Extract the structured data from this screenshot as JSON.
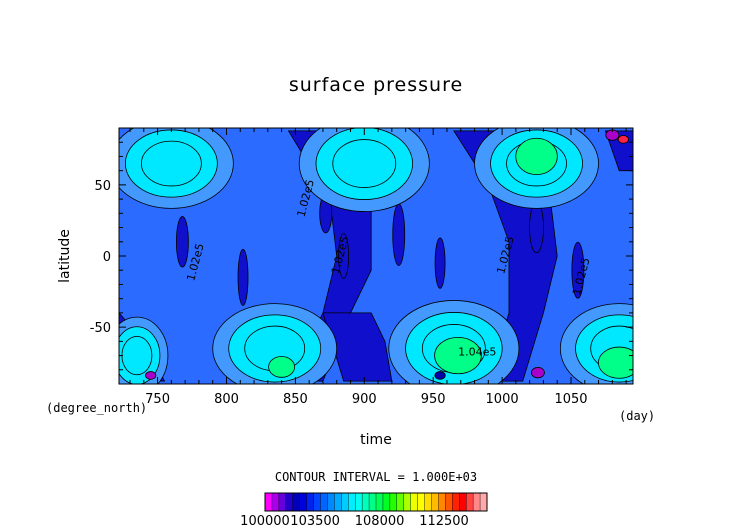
{
  "chart_data": {
    "type": "heatmap",
    "title": "surface pressure",
    "xlabel": "time",
    "ylabel": "latitude",
    "x_unit": "(day)",
    "y_unit": "(degree_north)",
    "xlim": [
      722,
      1095
    ],
    "ylim": [
      -90,
      90
    ],
    "x_ticks": [
      750,
      800,
      850,
      900,
      950,
      1000,
      1050
    ],
    "y_ticks": [
      50,
      0,
      -50
    ],
    "contour_interval_text": "CONTOUR INTERVAL = 1.000E+03",
    "contour_labels": [
      "1.02e5",
      "1.02e5",
      "1.02e5",
      "1.02e5",
      "1.02e5",
      "1.04e5"
    ],
    "colorbar": {
      "min": 100000,
      "max": 115500,
      "step": 500,
      "tick_values": [
        100000,
        103500,
        108000,
        112500
      ],
      "tick_labels": [
        "100000",
        "103500",
        "108000",
        "112500"
      ],
      "colors": [
        "#ff00ff",
        "#aa00ee",
        "#6600dd",
        "#2200cc",
        "#0000bb",
        "#0000dd",
        "#0022ee",
        "#0044ff",
        "#0066ff",
        "#0088ff",
        "#00aaff",
        "#00ccff",
        "#00eeff",
        "#00ffee",
        "#00ffbb",
        "#00ff88",
        "#00ff55",
        "#00ff22",
        "#22ff00",
        "#66ff00",
        "#aaff00",
        "#eeff00",
        "#ffff00",
        "#ffdd00",
        "#ffbb00",
        "#ff8800",
        "#ff5500",
        "#ff2200",
        "#ff0000",
        "#ff4444",
        "#ff8888",
        "#ffaaaa"
      ]
    },
    "band_colors": {
      "p1015": "#2b6bff",
      "p1025": "#1010cc",
      "p1035": "#00e8ff",
      "p1045": "#00ff88",
      "high": "#4499ff",
      "dark": "#0000aa",
      "magenta": "#aa00cc",
      "red": "#ff2244"
    }
  }
}
